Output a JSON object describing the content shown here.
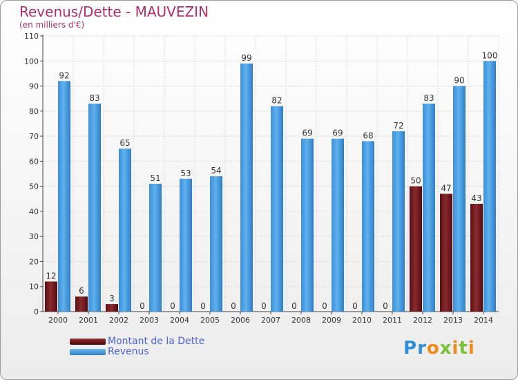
{
  "chart_data": {
    "type": "bar",
    "title": "Revenus/Dette - MAUVEZIN",
    "subtitle": "(en milliers d'€)",
    "categories": [
      "2000",
      "2001",
      "2002",
      "2003",
      "2004",
      "2005",
      "2006",
      "2007",
      "2008",
      "2009",
      "2010",
      "2011",
      "2012",
      "2013",
      "2014"
    ],
    "series": [
      {
        "name": "Montant de la Dette",
        "color": "#6b0f14",
        "values": [
          12,
          6,
          3,
          0,
          0,
          0,
          0,
          0,
          0,
          0,
          0,
          0,
          50,
          47,
          43
        ]
      },
      {
        "name": "Revenus",
        "color": "#3a8fd6",
        "values": [
          92,
          83,
          65,
          51,
          53,
          54,
          99,
          82,
          69,
          69,
          68,
          72,
          83,
          90,
          100
        ]
      }
    ],
    "ylim": [
      0,
      110
    ],
    "yticks": [
      0,
      10,
      20,
      30,
      40,
      50,
      60,
      70,
      80,
      90,
      100,
      110
    ],
    "grid": true,
    "legend_position": "bottom-left"
  },
  "logo": {
    "letters": [
      "P",
      "r",
      "o",
      "x",
      "i",
      "t",
      "i"
    ],
    "colors": [
      "#2f8fd8",
      "#2f8fd8",
      "#f08a1c",
      "#7bbf3a",
      "#f08a1c",
      "#7bbf3a",
      "#f08a1c"
    ]
  }
}
